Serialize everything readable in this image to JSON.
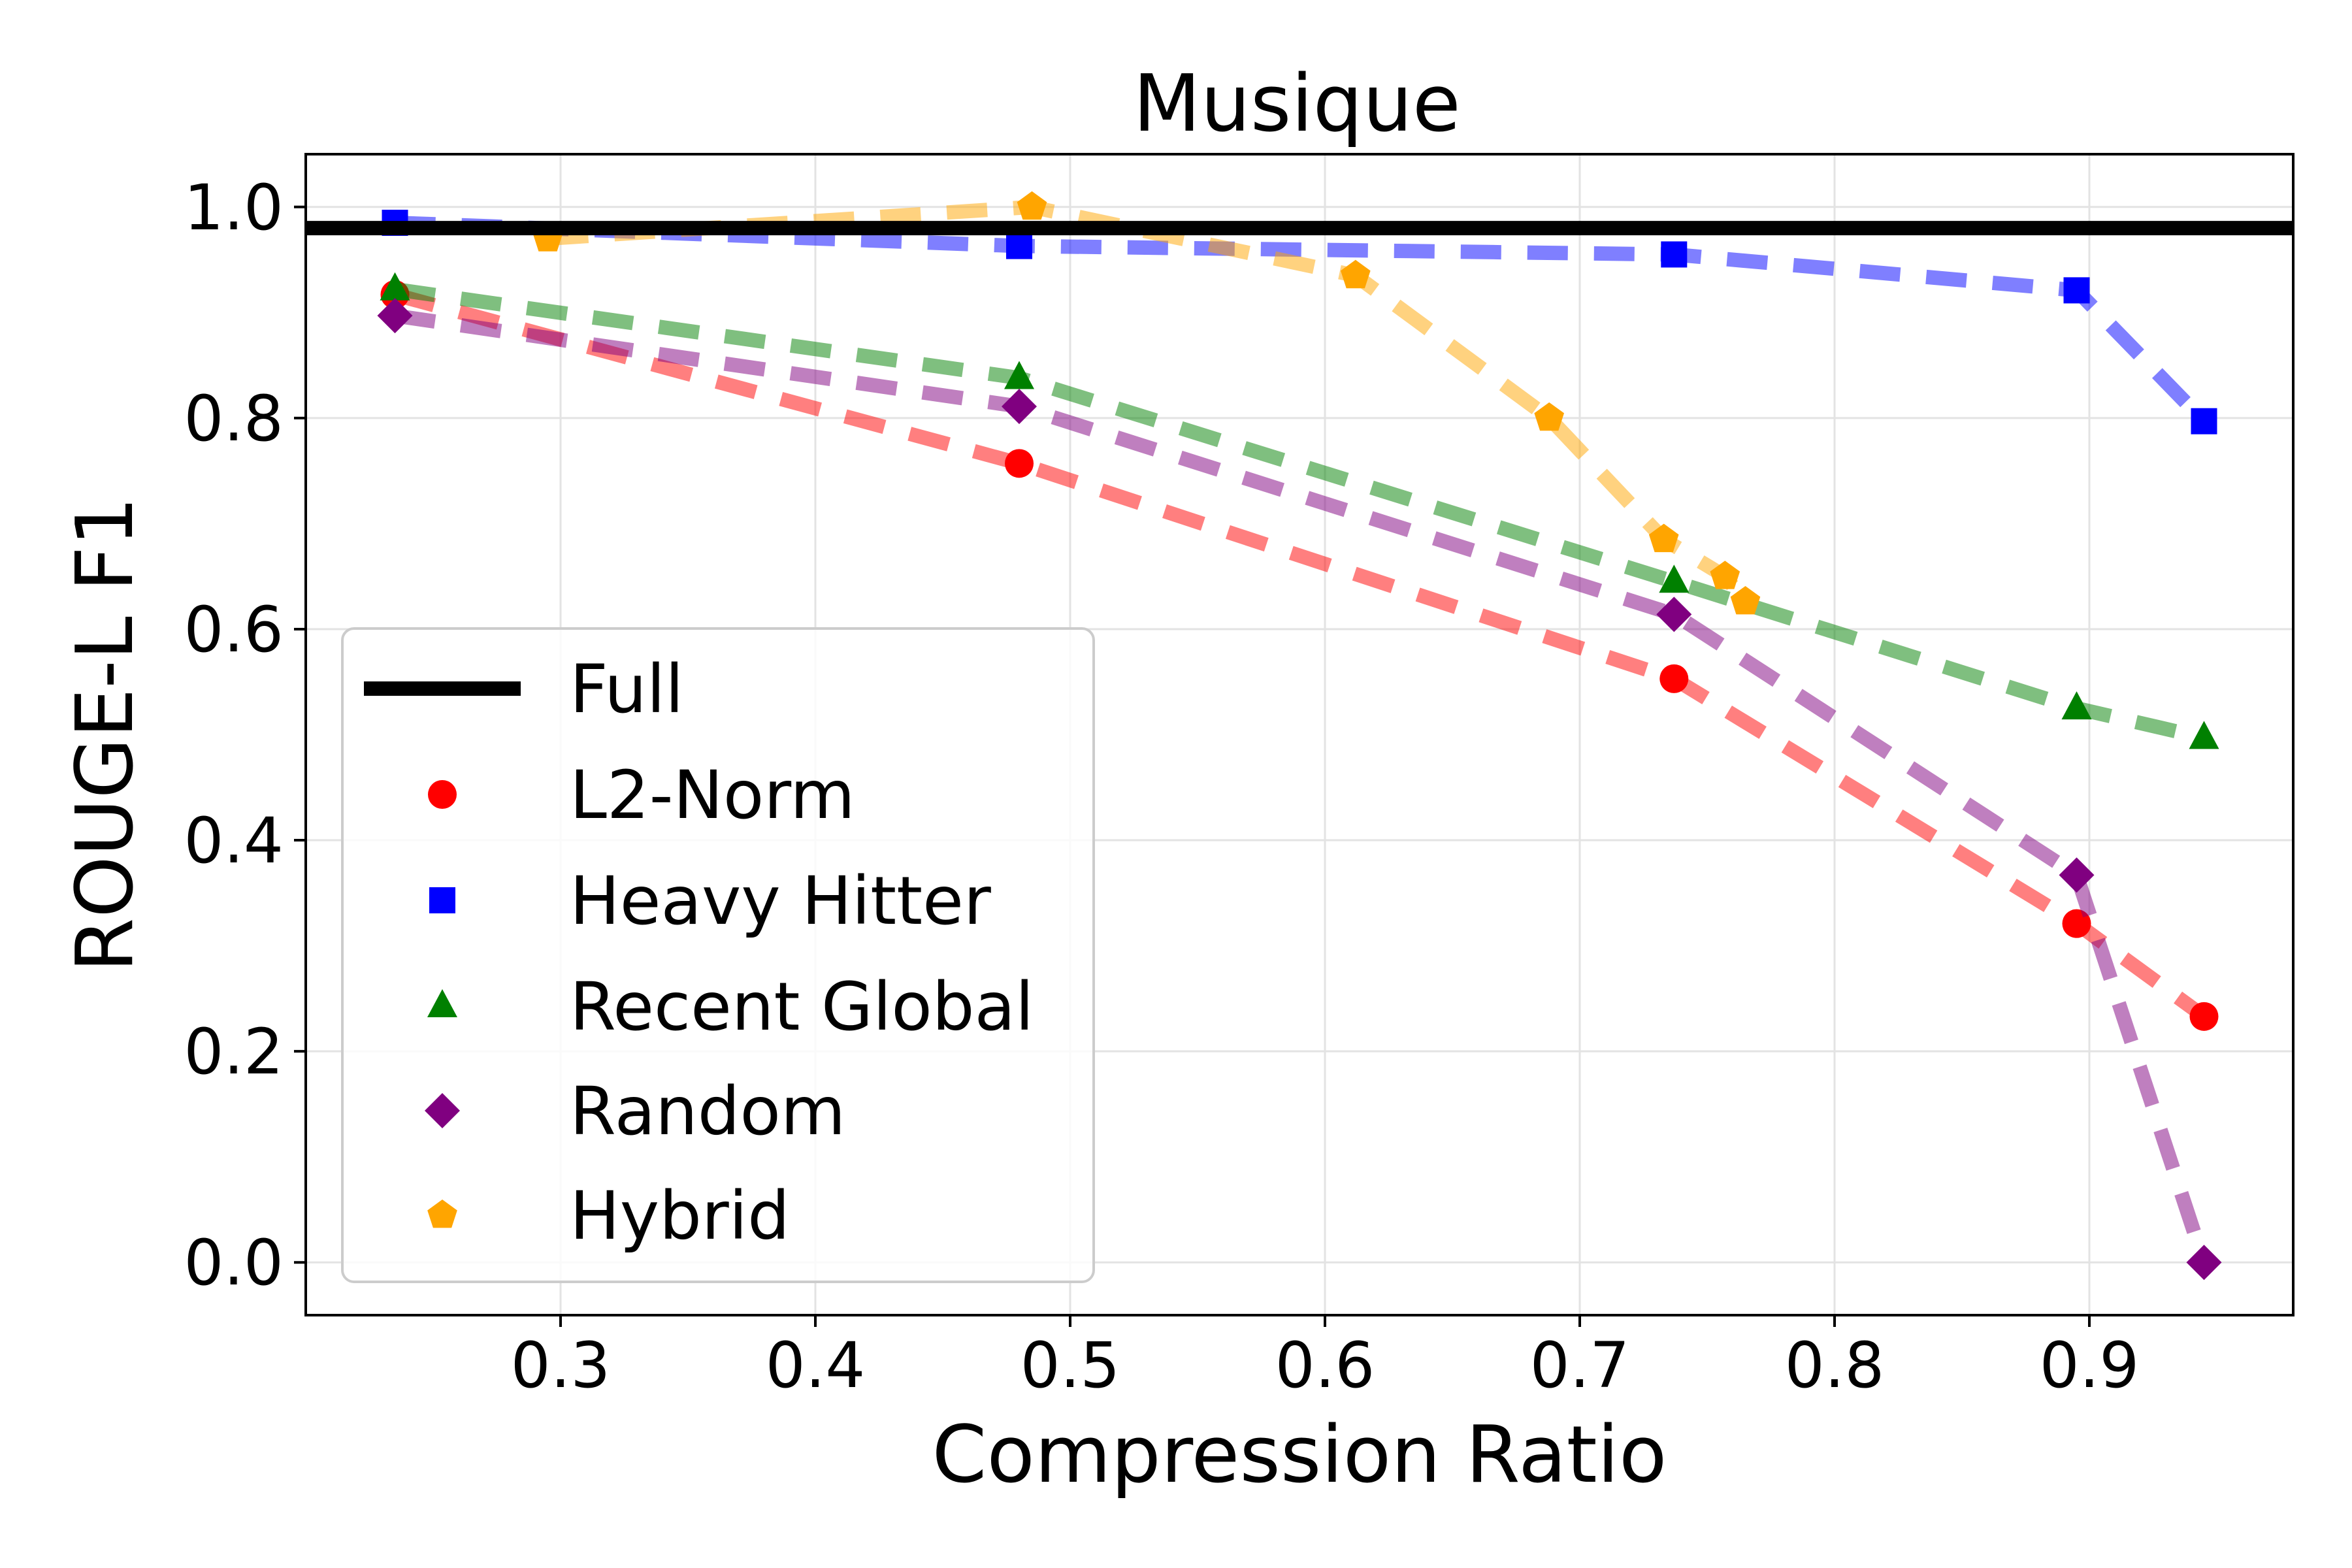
{
  "chart_data": {
    "type": "line",
    "title": "Musique",
    "xlabel": "Compression Ratio",
    "ylabel": "ROUGE-L F1",
    "xlim": [
      0.2,
      0.98
    ],
    "ylim": [
      -0.05,
      1.05
    ],
    "xticks": [
      0.3,
      0.4,
      0.5,
      0.6,
      0.7,
      0.8,
      0.9
    ],
    "xtick_labels": [
      "0.3",
      "0.4",
      "0.5",
      "0.6",
      "0.7",
      "0.8",
      "0.9"
    ],
    "yticks": [
      0.0,
      0.2,
      0.4,
      0.6,
      0.8,
      1.0
    ],
    "ytick_labels": [
      "0.0",
      "0.2",
      "0.4",
      "0.6",
      "0.8",
      "1.0"
    ],
    "grid": true,
    "legend_position": "lower-left",
    "baseline": {
      "name": "Full",
      "y": 0.98,
      "color": "#000000"
    },
    "series": [
      {
        "name": "L2-Norm",
        "color": "#ff0000",
        "marker": "circle",
        "x": [
          0.235,
          0.48,
          0.737,
          0.895,
          0.945
        ],
        "y": [
          0.917,
          0.757,
          0.553,
          0.321,
          0.233
        ]
      },
      {
        "name": "Heavy Hitter",
        "color": "#0000ff",
        "marker": "square",
        "x": [
          0.235,
          0.48,
          0.737,
          0.895,
          0.945
        ],
        "y": [
          0.985,
          0.963,
          0.955,
          0.921,
          0.797
        ]
      },
      {
        "name": "Recent Global",
        "color": "#008000",
        "marker": "triangle",
        "x": [
          0.235,
          0.48,
          0.737,
          0.895,
          0.945
        ],
        "y": [
          0.922,
          0.838,
          0.645,
          0.525,
          0.497
        ]
      },
      {
        "name": "Random",
        "color": "#800080",
        "marker": "diamond",
        "x": [
          0.235,
          0.48,
          0.737,
          0.895,
          0.945
        ],
        "y": [
          0.897,
          0.811,
          0.614,
          0.367,
          0.0
        ]
      },
      {
        "name": "Hybrid",
        "color": "#ffa500",
        "marker": "pentagon",
        "x": [
          0.295,
          0.485,
          0.612,
          0.688,
          0.733,
          0.757,
          0.765
        ],
        "y": [
          0.97,
          1.0,
          0.935,
          0.8,
          0.685,
          0.65,
          0.626
        ]
      }
    ]
  }
}
